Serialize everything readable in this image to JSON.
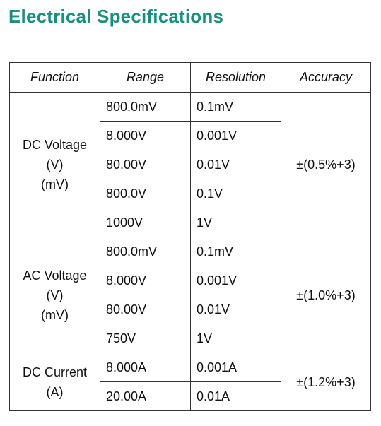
{
  "header": {
    "title": "Electrical Specifications"
  },
  "table": {
    "columns": [
      "Function",
      "Range",
      "Resolution",
      "Accuracy"
    ],
    "groups": [
      {
        "function": [
          "DC Voltage",
          "(V)",
          "(mV)"
        ],
        "rows": [
          [
            "800.0mV",
            "0.1mV"
          ],
          [
            "8.000V",
            "0.001V"
          ],
          [
            "80.00V",
            "0.01V"
          ],
          [
            "800.0V",
            "0.1V"
          ],
          [
            "1000V",
            "1V"
          ]
        ],
        "accuracy": "±(0.5%+3)"
      },
      {
        "function": [
          "AC Voltage",
          "(V)",
          "(mV)"
        ],
        "rows": [
          [
            "800.0mV",
            "0.1mV"
          ],
          [
            "8.000V",
            "0.001V"
          ],
          [
            "80.00V",
            "0.01V"
          ],
          [
            "750V",
            "1V"
          ]
        ],
        "accuracy": "±(1.0%+3)"
      },
      {
        "function": [
          "DC Current",
          "(A)"
        ],
        "rows": [
          [
            "8.000A",
            "0.001A"
          ],
          [
            "20.00A",
            "0.01A"
          ]
        ],
        "accuracy": "±(1.2%+3)"
      }
    ]
  }
}
